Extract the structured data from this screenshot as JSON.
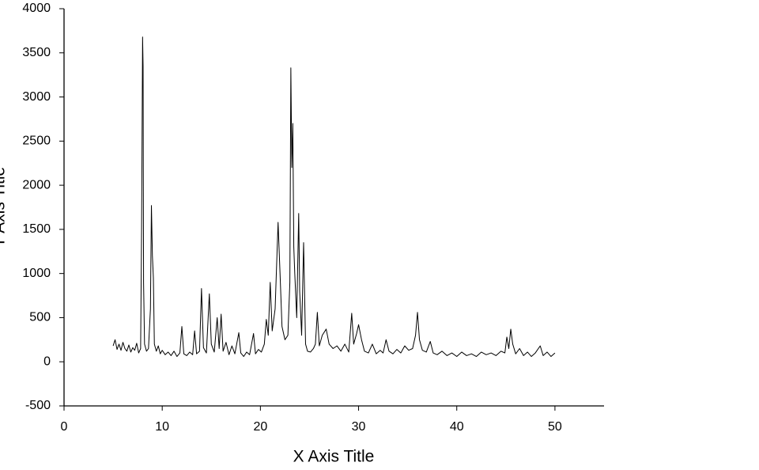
{
  "chart_data": {
    "type": "line",
    "x_label": "X Axis Title",
    "y_label": "Y Axis Title",
    "xlim": [
      0,
      55
    ],
    "xticks": [
      0,
      10,
      20,
      30,
      40,
      50
    ],
    "ylim": [
      -500,
      4000
    ],
    "yticks": [
      -500,
      0,
      500,
      1000,
      1500,
      2000,
      2500,
      3000,
      3500,
      4000
    ],
    "grid": false,
    "series": [
      {
        "color": "#000000",
        "x": [
          5.0,
          5.2,
          5.4,
          5.6,
          5.8,
          6.0,
          6.2,
          6.4,
          6.6,
          6.8,
          7.0,
          7.2,
          7.4,
          7.6,
          7.8,
          7.9,
          8.0,
          8.05,
          8.1,
          8.2,
          8.4,
          8.6,
          8.8,
          8.9,
          9.0,
          9.1,
          9.2,
          9.4,
          9.6,
          9.8,
          10.0,
          10.3,
          10.6,
          10.9,
          11.2,
          11.5,
          11.8,
          12.0,
          12.2,
          12.5,
          12.8,
          13.1,
          13.3,
          13.5,
          13.8,
          14.0,
          14.2,
          14.5,
          14.8,
          15.0,
          15.3,
          15.6,
          15.8,
          16.0,
          16.2,
          16.5,
          16.8,
          17.1,
          17.4,
          17.8,
          18.0,
          18.3,
          18.6,
          18.9,
          19.3,
          19.5,
          19.8,
          20.1,
          20.4,
          20.6,
          20.8,
          21.0,
          21.2,
          21.5,
          21.8,
          22.0,
          22.2,
          22.5,
          22.8,
          23.0,
          23.1,
          23.2,
          23.3,
          23.4,
          23.5,
          23.7,
          23.9,
          24.0,
          24.2,
          24.4,
          24.6,
          24.8,
          25.1,
          25.4,
          25.6,
          25.8,
          26.0,
          26.3,
          26.7,
          27.0,
          27.4,
          27.8,
          28.2,
          28.6,
          29.0,
          29.3,
          29.5,
          29.8,
          30.0,
          30.3,
          30.6,
          31.0,
          31.4,
          31.8,
          32.2,
          32.5,
          32.8,
          33.1,
          33.5,
          33.9,
          34.3,
          34.7,
          35.1,
          35.5,
          35.8,
          36.0,
          36.2,
          36.5,
          36.9,
          37.3,
          37.6,
          38.0,
          38.5,
          39.0,
          39.5,
          40.0,
          40.5,
          41.0,
          41.5,
          42.0,
          42.5,
          43.0,
          43.5,
          44.0,
          44.5,
          44.9,
          45.1,
          45.3,
          45.5,
          45.7,
          46.0,
          46.4,
          46.8,
          47.2,
          47.6,
          48.0,
          48.5,
          48.8,
          49.2,
          49.6,
          50.0
        ],
        "values": [
          180,
          250,
          140,
          200,
          130,
          220,
          150,
          120,
          190,
          110,
          160,
          130,
          210,
          100,
          150,
          1500,
          3680,
          3350,
          900,
          200,
          120,
          150,
          600,
          1770,
          1200,
          950,
          200,
          120,
          180,
          90,
          130,
          80,
          110,
          70,
          120,
          60,
          100,
          400,
          90,
          70,
          110,
          80,
          350,
          90,
          120,
          830,
          160,
          100,
          770,
          200,
          110,
          500,
          150,
          540,
          120,
          220,
          80,
          180,
          90,
          330,
          100,
          60,
          110,
          80,
          320,
          90,
          140,
          110,
          200,
          480,
          300,
          900,
          350,
          600,
          1580,
          1000,
          400,
          250,
          300,
          900,
          3330,
          2200,
          2700,
          1300,
          1000,
          500,
          1680,
          800,
          300,
          1350,
          200,
          120,
          110,
          150,
          200,
          560,
          180,
          300,
          370,
          200,
          150,
          180,
          120,
          200,
          110,
          550,
          200,
          320,
          420,
          250,
          120,
          100,
          200,
          90,
          130,
          100,
          250,
          120,
          90,
          140,
          100,
          180,
          130,
          150,
          300,
          560,
          250,
          130,
          110,
          230,
          100,
          80,
          120,
          70,
          100,
          60,
          110,
          70,
          90,
          60,
          110,
          80,
          100,
          70,
          120,
          100,
          280,
          150,
          370,
          200,
          90,
          150,
          70,
          110,
          60,
          100,
          180,
          70,
          110,
          60,
          100
        ]
      }
    ]
  }
}
